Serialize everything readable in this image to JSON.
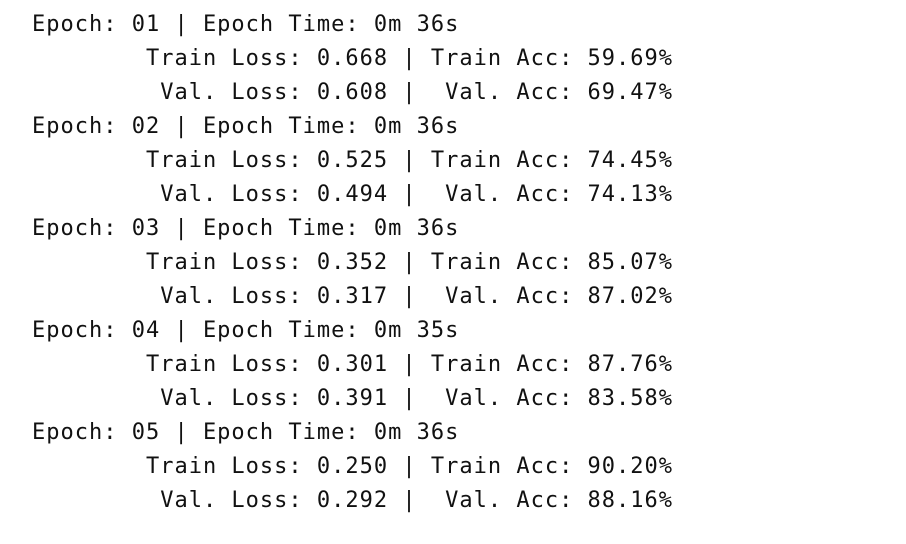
{
  "lines": [
    "Epoch: 01 | Epoch Time: 0m 36s",
    "        Train Loss: 0.668 | Train Acc: 59.69%",
    "         Val. Loss: 0.608 |  Val. Acc: 69.47%",
    "Epoch: 02 | Epoch Time: 0m 36s",
    "        Train Loss: 0.525 | Train Acc: 74.45%",
    "         Val. Loss: 0.494 |  Val. Acc: 74.13%",
    "Epoch: 03 | Epoch Time: 0m 36s",
    "        Train Loss: 0.352 | Train Acc: 85.07%",
    "         Val. Loss: 0.317 |  Val. Acc: 87.02%",
    "Epoch: 04 | Epoch Time: 0m 35s",
    "        Train Loss: 0.301 | Train Acc: 87.76%",
    "         Val. Loss: 0.391 |  Val. Acc: 83.58%",
    "Epoch: 05 | Epoch Time: 0m 36s",
    "        Train Loss: 0.250 | Train Acc: 90.20%",
    "         Val. Loss: 0.292 |  Val. Acc: 88.16%"
  ]
}
